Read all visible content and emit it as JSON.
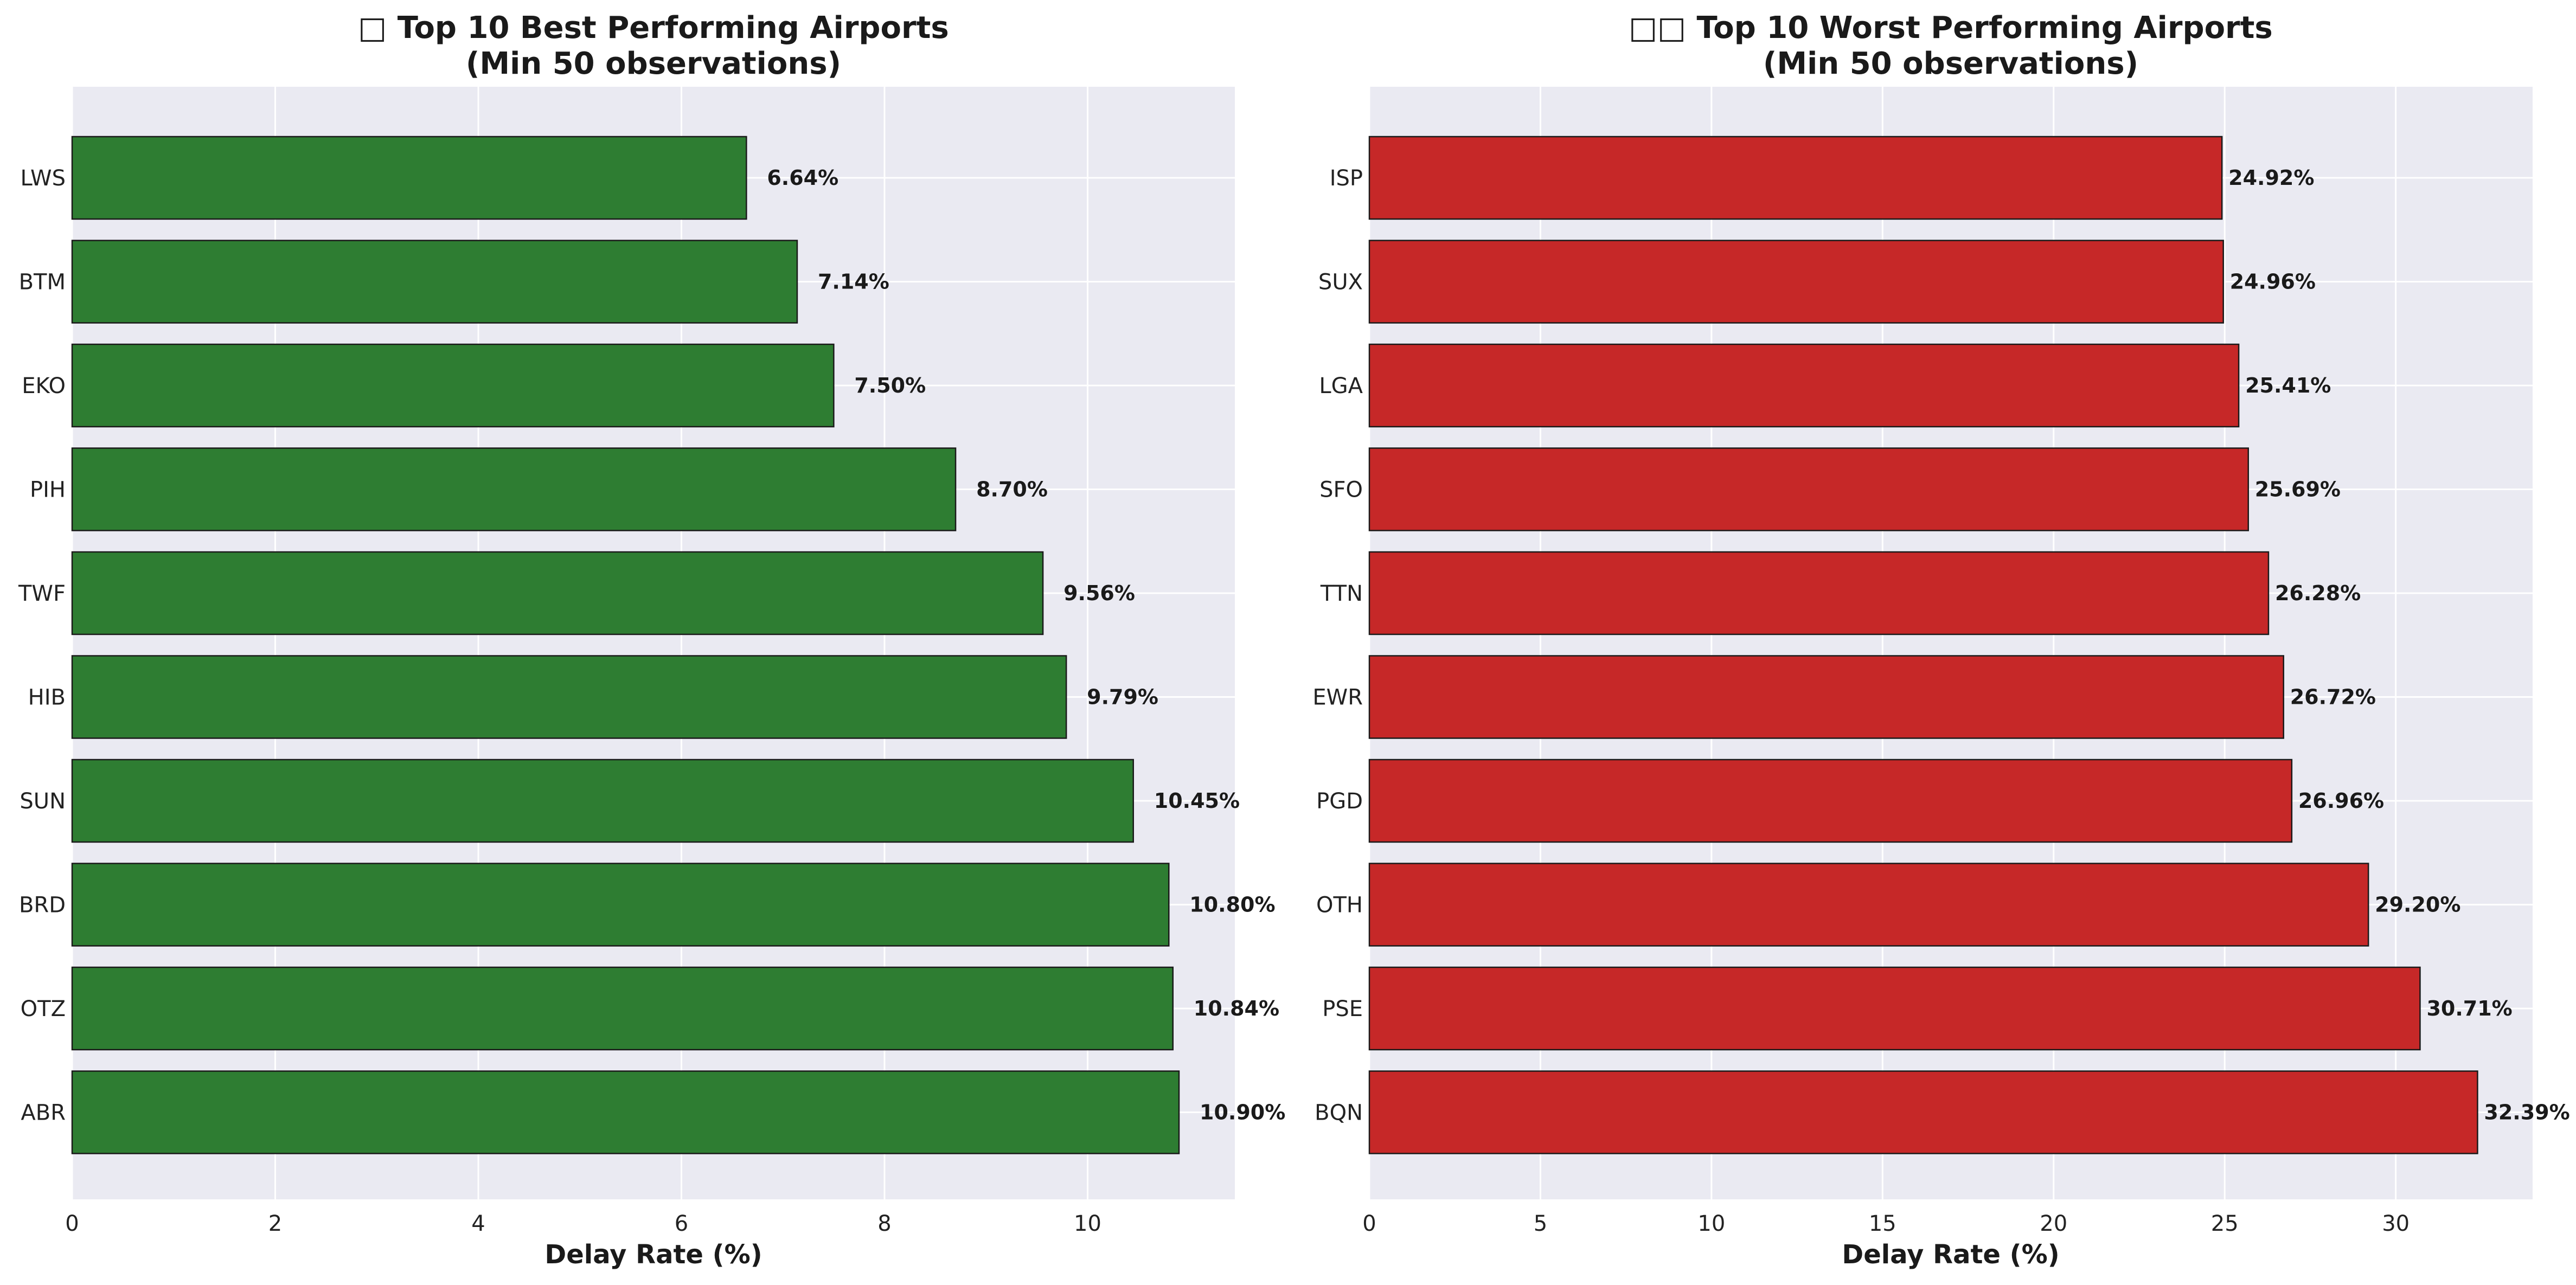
{
  "chart_data": [
    {
      "type": "bar",
      "orientation": "horizontal",
      "title_line1": "□ Top 10 Best Performing Airports",
      "title_line2": "(Min 50 observations)",
      "xlabel": "Delay Rate (%)",
      "ylabel": "",
      "categories": [
        "LWS",
        "BTM",
        "EKO",
        "PIH",
        "TWF",
        "HIB",
        "SUN",
        "BRD",
        "OTZ",
        "ABR"
      ],
      "values": [
        6.64,
        7.14,
        7.5,
        8.7,
        9.56,
        9.79,
        10.45,
        10.8,
        10.84,
        10.9
      ],
      "data_labels": [
        "6.64%",
        "7.14%",
        "7.50%",
        "8.70%",
        "9.56%",
        "9.79%",
        "10.45%",
        "10.80%",
        "10.84%",
        "10.90%"
      ],
      "xlim": [
        0,
        11.45
      ],
      "xticks": [
        0,
        2,
        4,
        6,
        8,
        10
      ],
      "bar_color": "#2e7d32",
      "grid": true
    },
    {
      "type": "bar",
      "orientation": "horizontal",
      "title_line1": "□□ Top 10 Worst Performing Airports",
      "title_line2": "(Min 50 observations)",
      "xlabel": "Delay Rate (%)",
      "ylabel": "",
      "categories": [
        "ISP",
        "SUX",
        "LGA",
        "SFO",
        "TTN",
        "EWR",
        "PGD",
        "OTH",
        "PSE",
        "BQN"
      ],
      "values": [
        24.92,
        24.96,
        25.41,
        25.69,
        26.28,
        26.72,
        26.96,
        29.2,
        30.71,
        32.39
      ],
      "data_labels": [
        "24.92%",
        "24.96%",
        "25.41%",
        "25.69%",
        "26.28%",
        "26.72%",
        "26.96%",
        "29.20%",
        "30.71%",
        "32.39%"
      ],
      "xlim": [
        0,
        34.0
      ],
      "xticks": [
        0,
        5,
        10,
        15,
        20,
        25,
        30
      ],
      "bar_color": "#c62828",
      "grid": true
    }
  ]
}
